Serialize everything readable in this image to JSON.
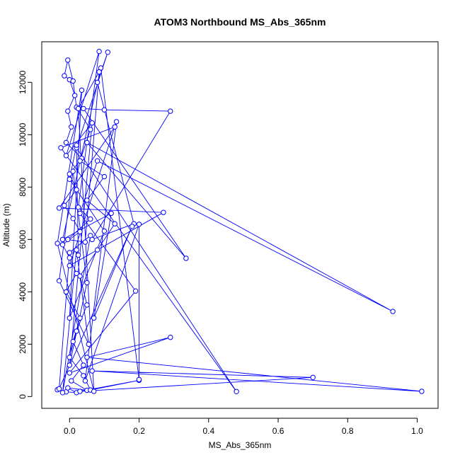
{
  "chart_data": {
    "type": "line",
    "title": "ATOM3 Northbound MS_Abs_365nm",
    "xlabel": "MS_Abs_365nm",
    "ylabel": "Altitude (m)",
    "xlim": [
      -0.08,
      1.06
    ],
    "ylim": [
      -450,
      13550
    ],
    "xticks": [
      0.0,
      0.2,
      0.4,
      0.6,
      0.8,
      1.0
    ],
    "xtick_labels": [
      "0.0",
      "0.2",
      "0.4",
      "0.6",
      "0.8",
      "1.0"
    ],
    "yticks": [
      0,
      2000,
      4000,
      6000,
      8000,
      10000,
      12000
    ],
    "ytick_labels": [
      "0",
      "2000",
      "4000",
      "6000",
      "8000",
      "10000",
      "12000"
    ],
    "grid": false,
    "legend": "none",
    "series": [
      {
        "color": "#0000ff",
        "marker": "open-circle",
        "points": [
          [
            -0.035,
            260
          ],
          [
            -0.01,
            180
          ],
          [
            0.02,
            150
          ],
          [
            -0.005,
            330
          ],
          [
            0.05,
            240
          ],
          [
            0.005,
            600
          ],
          [
            0.04,
            1200
          ],
          [
            0.01,
            2100
          ],
          [
            0.03,
            3000
          ],
          [
            -0.01,
            4000
          ],
          [
            0.02,
            4700
          ],
          [
            0.0,
            5300
          ],
          [
            -0.02,
            5800
          ],
          [
            0.03,
            6300
          ],
          [
            0.01,
            6800
          ],
          [
            -0.015,
            7300
          ],
          [
            0.02,
            7900
          ],
          [
            0.0,
            8500
          ],
          [
            0.035,
            9100
          ],
          [
            -0.01,
            9700
          ],
          [
            0.005,
            10300
          ],
          [
            -0.005,
            10900
          ],
          [
            0.015,
            11500
          ],
          [
            0.0,
            12100
          ],
          [
            -0.015,
            12250
          ],
          [
            -0.005,
            12850
          ],
          [
            0.01,
            12050
          ],
          [
            0.02,
            11050
          ],
          [
            0.06,
            10200
          ],
          [
            0.03,
            9000
          ],
          [
            0.1,
            8400
          ],
          [
            0.05,
            7500
          ],
          [
            0.13,
            6600
          ],
          [
            0.08,
            5600
          ],
          [
            0.03,
            4600
          ],
          [
            0.05,
            3500
          ],
          [
            0.02,
            2500
          ],
          [
            0.0,
            1500
          ],
          [
            0.04,
            800
          ],
          [
            0.06,
            250
          ],
          [
            0.2,
            620
          ],
          [
            0.03,
            200
          ],
          [
            0.7,
            730
          ],
          [
            0.065,
            980
          ],
          [
            1.013,
            200
          ],
          [
            0.05,
            1500
          ],
          [
            0.29,
            2260
          ],
          [
            0.0,
            900
          ],
          [
            0.19,
            4030
          ],
          [
            0.03,
            7000
          ],
          [
            0.08,
            9000
          ],
          [
            0.93,
            3250
          ],
          [
            0.05,
            9700
          ],
          [
            0.335,
            5280
          ],
          [
            0.04,
            11000
          ],
          [
            0.1,
            10950
          ],
          [
            0.29,
            10900
          ],
          [
            0.065,
            6000
          ],
          [
            0.185,
            6600
          ],
          [
            0.08,
            12000
          ],
          [
            0.11,
            13150
          ],
          [
            0.02,
            9500
          ],
          [
            0.48,
            190
          ],
          [
            -0.025,
            9500
          ],
          [
            0.13,
            10300
          ],
          [
            -0.03,
            7200
          ],
          [
            0.27,
            7030
          ],
          [
            0.0,
            5000
          ],
          [
            0.135,
            10500
          ],
          [
            0.045,
            600
          ],
          [
            0.2,
            6580
          ],
          [
            0.2,
            650
          ],
          [
            0.09,
            12550
          ],
          [
            -0.02,
            6000
          ],
          [
            0.12,
            7000
          ],
          [
            0.07,
            3000
          ],
          [
            0.18,
            6500
          ],
          [
            -0.03,
            300
          ],
          [
            0.0,
            5500
          ],
          [
            0.06,
            6150
          ],
          [
            -0.02,
            150
          ],
          [
            0.02,
            5600
          ],
          [
            0.055,
            2000
          ],
          [
            -0.03,
            4420
          ],
          [
            0.01,
            8600
          ],
          [
            0.05,
            4350
          ],
          [
            0.0,
            1200
          ],
          [
            0.065,
            10450
          ],
          [
            -0.01,
            9200
          ],
          [
            0.085,
            13180
          ],
          [
            0.025,
            7230
          ],
          [
            0.06,
            6780
          ],
          [
            -0.005,
            6000
          ],
          [
            0.045,
            5900
          ],
          [
            0.085,
            12400
          ],
          [
            0.025,
            11000
          ],
          [
            0.07,
            200
          ],
          [
            -0.035,
            5850
          ],
          [
            0.035,
            11700
          ],
          [
            0.0,
            3000
          ],
          [
            0.1,
            6320
          ],
          [
            0.0,
            8300
          ],
          [
            0.02,
            9600
          ],
          [
            0.025,
            5400
          ]
        ]
      }
    ]
  }
}
